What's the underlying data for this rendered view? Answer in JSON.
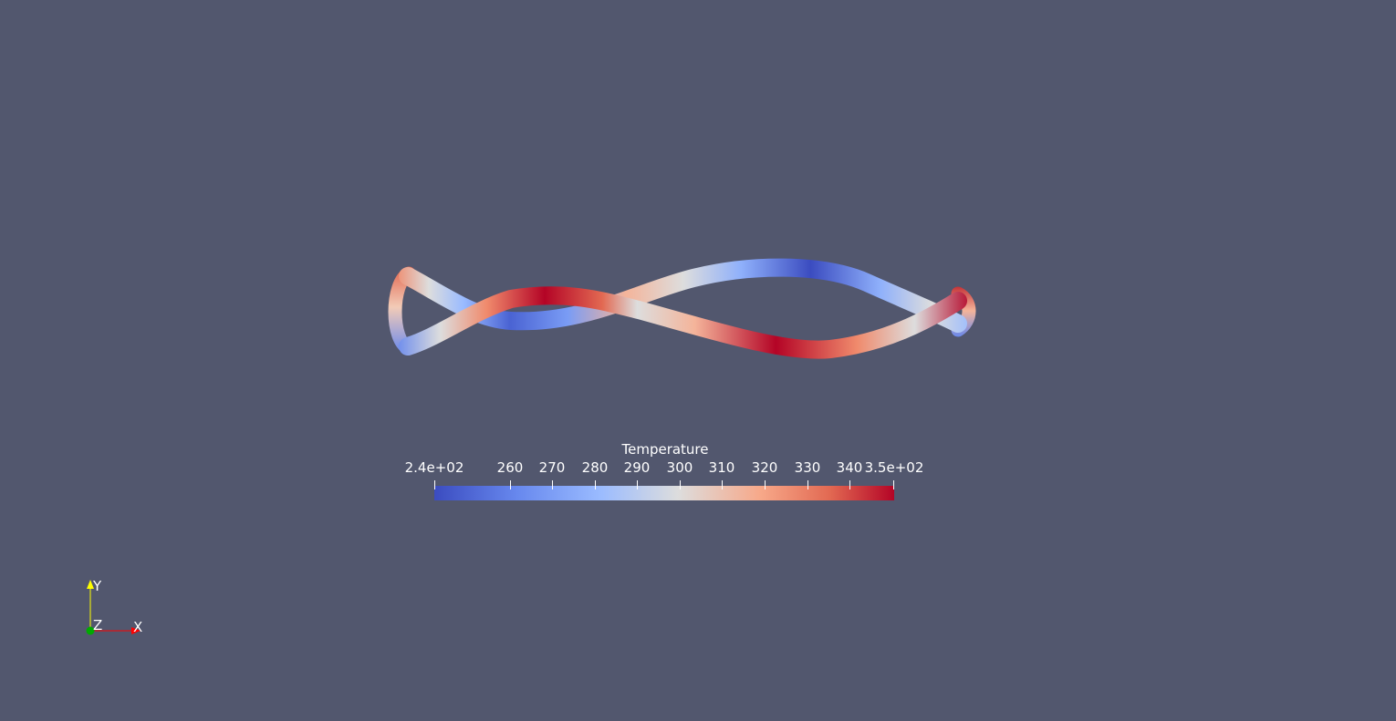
{
  "colorbar": {
    "title": "Temperature",
    "colors": [
      "#3b4cc0",
      "#dddddd",
      "#b40426"
    ],
    "tick_labels": [
      "2.4e+02",
      "260",
      "270",
      "280",
      "290",
      "300",
      "310",
      "320",
      "330",
      "340",
      "3.5e+02"
    ]
  },
  "orientation_axes": {
    "y_label": "Y",
    "x_label": "X",
    "z_label": "Z",
    "y_color": "#ffff00",
    "x_color": "#ff0000",
    "z_color": "#00aa00"
  }
}
